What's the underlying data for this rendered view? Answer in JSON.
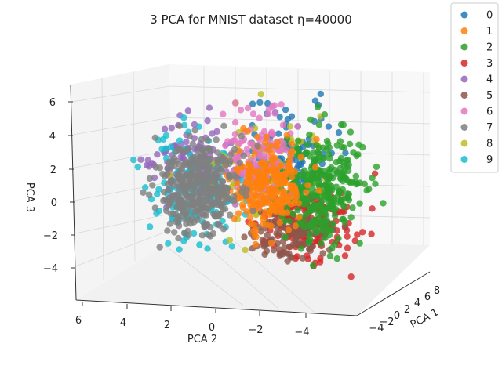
{
  "chart_data": {
    "type": "scatter",
    "title": "3 PCA for MNIST dataset η=40000",
    "xlabel": "PCA 1",
    "ylabel": "PCA 2",
    "zlabel": "PCA 3",
    "xticks": [
      "−4",
      "−2",
      "0",
      "2",
      "4",
      "6",
      "8"
    ],
    "yticks": [
      "6",
      "4",
      "2",
      "0",
      "−2",
      "−4"
    ],
    "zticks": [
      "6",
      "4",
      "2",
      "0",
      "−2",
      "−4"
    ],
    "xlim": [
      -5,
      9
    ],
    "ylim": [
      -5.5,
      6.5
    ],
    "zlim": [
      -5.5,
      7
    ],
    "grid": true,
    "legend_position": "top-right",
    "series": [
      {
        "name": "0",
        "color": "#1f77b4"
      },
      {
        "name": "1",
        "color": "#ff7f0e"
      },
      {
        "name": "2",
        "color": "#2ca02c"
      },
      {
        "name": "3",
        "color": "#d62728"
      },
      {
        "name": "4",
        "color": "#9467bd"
      },
      {
        "name": "5",
        "color": "#8c564b"
      },
      {
        "name": "6",
        "color": "#e377c2"
      },
      {
        "name": "7",
        "color": "#7f7f7f"
      },
      {
        "name": "8",
        "color": "#bcbd22"
      },
      {
        "name": "9",
        "color": "#17becf"
      }
    ]
  }
}
